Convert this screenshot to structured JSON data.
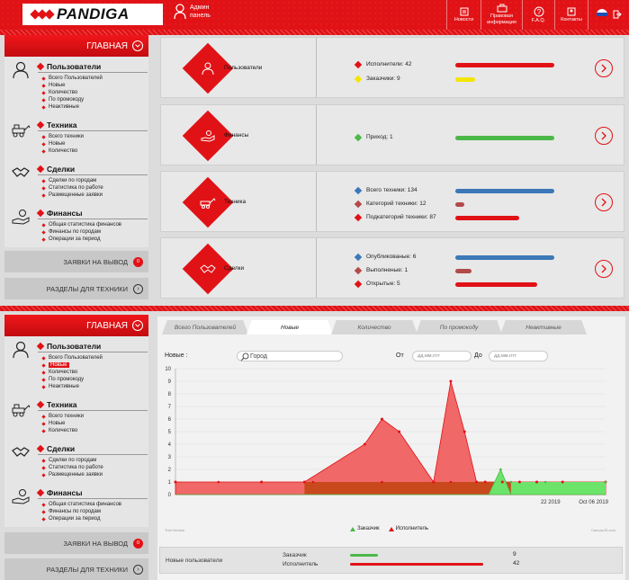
{
  "header": {
    "brand": "PANDIGA",
    "admin_line1": "Админ",
    "admin_line2": "панель",
    "nav": [
      {
        "label": "Новости",
        "icon": "news-icon"
      },
      {
        "label": "Правовая информация",
        "icon": "legal-info-icon"
      },
      {
        "label": "F.A.Q.",
        "icon": "faq-icon"
      },
      {
        "label": "Контакты",
        "icon": "contacts-icon"
      }
    ]
  },
  "sidebar": {
    "title": "ГЛАВНАЯ",
    "groups": [
      {
        "title": "Пользователи",
        "icon": "users-icon",
        "items": [
          "Всего Пользователей",
          "Новые",
          "Количество",
          "По промокоду",
          "Неактивные"
        ]
      },
      {
        "title": "Техника",
        "icon": "machinery-icon",
        "items": [
          "Всего техники",
          "Новые",
          "Количество"
        ]
      },
      {
        "title": "Сделки",
        "icon": "deals-icon",
        "items": [
          "Сделки по городам",
          "Статистика по работе",
          "Размещенные заявки"
        ]
      },
      {
        "title": "Финансы",
        "icon": "finance-icon",
        "items": [
          "Общая статистика финансов",
          "Финансы по городам",
          "Операции за период"
        ]
      }
    ],
    "withdraw_label": "ЗАЯВКИ НА ВЫВОД",
    "withdraw_count": "0",
    "sections_label": "РАЗДЕЛЫ ДЛЯ ТЕХНИКИ"
  },
  "cards": [
    {
      "title": "Пользователи",
      "stats": [
        {
          "label": "Исполнители:",
          "value": "42",
          "color": "#e11216",
          "fraction": 1.0
        },
        {
          "label": "Заказчики:",
          "value": "9",
          "color": "#f2e600",
          "fraction": 0.2
        }
      ]
    },
    {
      "title": "Финансы",
      "stats": [
        {
          "label": "Приход:",
          "value": "1",
          "color": "#4cb848",
          "fraction": 1.0
        }
      ]
    },
    {
      "title": "Техника",
      "stats": [
        {
          "label": "Всего техники:",
          "value": "134",
          "color": "#3b78b8",
          "fraction": 1.0
        },
        {
          "label": "Категорий техники:",
          "value": "12",
          "color": "#b34a4a",
          "fraction": 0.09
        },
        {
          "label": "Подкатегорий техники:",
          "value": "87",
          "color": "#e11216",
          "fraction": 0.65
        }
      ]
    },
    {
      "title": "Сделки",
      "stats": [
        {
          "label": "Опубликованые:",
          "value": "6",
          "color": "#3b78b8",
          "fraction": 1.0
        },
        {
          "label": "Выполненые:",
          "value": "1",
          "color": "#b34a4a",
          "fraction": 0.17
        },
        {
          "label": "Открытые:",
          "value": "5",
          "color": "#e11216",
          "fraction": 0.83
        }
      ]
    }
  ],
  "panel": {
    "tabs": [
      "Всего Пользователей",
      "Новые",
      "Количество",
      "По промокоду",
      "Неактивные"
    ],
    "active_tab": 1,
    "filter_label": "Новые :",
    "search_placeholder": "Город",
    "from_label": "От",
    "to_label": "До",
    "date_placeholder": "дд.мм.гггг",
    "chart_note_left": "Trial Version",
    "chart_note_right": "CanvasJS.com",
    "summary_title": "Новые пользователи",
    "summary_rows": [
      {
        "label": "Заказчик",
        "value": "9",
        "color": "#4cb848",
        "fraction": 0.21
      },
      {
        "label": "Исполнитель",
        "value": "42",
        "color": "#e11216",
        "fraction": 1.0
      }
    ]
  },
  "chart_data": {
    "type": "area",
    "ylim": [
      0,
      10
    ],
    "yticks": [
      0,
      1,
      2,
      3,
      4,
      5,
      6,
      7,
      8,
      9,
      10
    ],
    "xtick_labels": [
      "22 2019",
      "Oct 06 2019"
    ],
    "legend": [
      "Заказчик",
      "Исполнитель"
    ],
    "series": [
      {
        "name": "Исполнитель",
        "color": "#e11216",
        "x": [
          0,
          5,
          7.5,
          11,
          12,
          13,
          15,
          16,
          16.8,
          17.5,
          18,
          19,
          20,
          21,
          22.5,
          25
        ],
        "y": [
          1,
          1,
          1,
          4,
          6,
          5,
          1,
          9,
          5,
          1,
          1,
          1,
          1,
          1,
          1,
          1
        ]
      },
      {
        "name": "Заказчик",
        "color": "#4cb848",
        "x": [
          0,
          16,
          17.5,
          18.2,
          18.9,
          19.5,
          25
        ],
        "y": [
          0,
          0,
          0,
          0,
          2,
          0,
          0
        ]
      }
    ],
    "overlap_band": {
      "x_start": 0,
      "x_end": 25,
      "y": 1
    },
    "green_band": {
      "x_start": 19.5,
      "x_end": 25,
      "y": 1
    }
  }
}
